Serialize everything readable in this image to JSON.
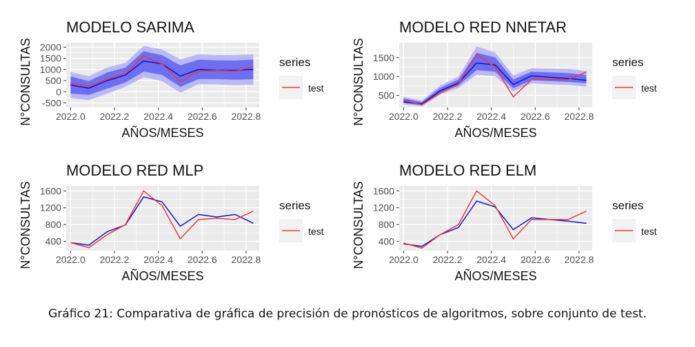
{
  "caption": "Gráfico 21: Comparativa de gráfica de precisión de pronósticos de algoritmos, sobre conjunto de test.",
  "colors": {
    "panel": "#ebebeb",
    "grid": "#ffffff",
    "test": "#e8393c",
    "forecast": "#1010c8",
    "band80": "#6e6ef0",
    "band95": "#b9b9f5"
  },
  "chart_data": [
    {
      "type": "line",
      "title": "MODELO SARIMA",
      "xlabel": "AÑOS/MESES",
      "ylabel": "N°CONSULTAS",
      "legend_title": "series",
      "legend_position": "right",
      "grid": true,
      "xlim": [
        2021.98,
        2022.86
      ],
      "ylim": [
        -700,
        2200
      ],
      "xticks": [
        2022.0,
        2022.2,
        2022.4,
        2022.6,
        2022.8
      ],
      "yticks": [
        -500,
        0,
        500,
        1000,
        1500,
        2000
      ],
      "x": [
        2022.0,
        2022.083,
        2022.167,
        2022.25,
        2022.333,
        2022.417,
        2022.5,
        2022.583,
        2022.667,
        2022.75,
        2022.833
      ],
      "series": [
        {
          "name": "test",
          "values": [
            380,
            250,
            560,
            800,
            1600,
            1250,
            460,
            920,
            950,
            920,
            1130
          ]
        },
        {
          "values": [
            300,
            160,
            500,
            750,
            1380,
            1250,
            700,
            1000,
            960,
            960,
            1000
          ]
        }
      ],
      "bands": [
        {
          "level": 95,
          "lower": [
            -280,
            -380,
            -80,
            220,
            650,
            480,
            -40,
            340,
            330,
            300,
            320
          ],
          "upper": [
            880,
            700,
            1080,
            1300,
            2050,
            1900,
            1450,
            1680,
            1650,
            1650,
            1680
          ]
        },
        {
          "level": 80,
          "lower": [
            -80,
            -140,
            140,
            420,
            900,
            760,
            220,
            570,
            570,
            540,
            560
          ],
          "upper": [
            680,
            480,
            860,
            1080,
            1820,
            1640,
            1180,
            1440,
            1410,
            1400,
            1440
          ]
        }
      ]
    },
    {
      "type": "line",
      "title": "MODELO RED NNETAR",
      "xlabel": "AÑOS/MESES",
      "ylabel": "N°CONSULTAS",
      "legend_title": "series",
      "legend_position": "right",
      "grid": true,
      "xlim": [
        2021.98,
        2022.86
      ],
      "ylim": [
        180,
        1900
      ],
      "xticks": [
        2022.0,
        2022.2,
        2022.4,
        2022.6,
        2022.8
      ],
      "yticks": [
        500,
        1000,
        1500
      ],
      "x": [
        2022.0,
        2022.083,
        2022.167,
        2022.25,
        2022.333,
        2022.417,
        2022.5,
        2022.583,
        2022.667,
        2022.75,
        2022.833
      ],
      "series": [
        {
          "name": "test",
          "values": [
            370,
            250,
            560,
            800,
            1600,
            1250,
            460,
            920,
            920,
            920,
            1120
          ]
        },
        {
          "values": [
            330,
            270,
            620,
            830,
            1360,
            1310,
            790,
            1020,
            980,
            950,
            900
          ]
        }
      ],
      "bands": [
        {
          "level": 95,
          "lower": [
            260,
            210,
            520,
            700,
            1050,
            1010,
            600,
            820,
            790,
            780,
            730
          ],
          "upper": [
            460,
            360,
            760,
            1000,
            1800,
            1640,
            1030,
            1220,
            1210,
            1200,
            1150
          ]
        },
        {
          "level": 80,
          "lower": [
            300,
            240,
            570,
            760,
            1170,
            1130,
            690,
            900,
            880,
            860,
            820
          ],
          "upper": [
            420,
            320,
            700,
            920,
            1630,
            1510,
            920,
            1130,
            1110,
            1090,
            1040
          ]
        }
      ]
    },
    {
      "type": "line",
      "title": "MODELO RED MLP",
      "xlabel": "AÑOS/MESES",
      "ylabel": "N°CONSULTAS",
      "legend_title": "series",
      "legend_position": "right",
      "grid": true,
      "xlim": [
        2021.98,
        2022.86
      ],
      "ylim": [
        180,
        1720
      ],
      "xticks": [
        2022.0,
        2022.2,
        2022.4,
        2022.6,
        2022.8
      ],
      "yticks": [
        400,
        800,
        1200,
        1600
      ],
      "x": [
        2022.0,
        2022.083,
        2022.167,
        2022.25,
        2022.333,
        2022.417,
        2022.5,
        2022.583,
        2022.667,
        2022.75,
        2022.833
      ],
      "series": [
        {
          "name": "test",
          "values": [
            370,
            250,
            560,
            800,
            1600,
            1250,
            460,
            920,
            950,
            920,
            1120
          ]
        },
        {
          "values": [
            370,
            310,
            630,
            790,
            1460,
            1340,
            760,
            1040,
            980,
            1040,
            830
          ]
        }
      ]
    },
    {
      "type": "line",
      "title": "MODELO RED ELM",
      "xlabel": "AÑOS/MESES",
      "ylabel": "N°CONSULTAS",
      "legend_title": "series",
      "legend_position": "right",
      "grid": true,
      "xlim": [
        2021.98,
        2022.86
      ],
      "ylim": [
        180,
        1720
      ],
      "xticks": [
        2022.0,
        2022.2,
        2022.4,
        2022.6,
        2022.8
      ],
      "yticks": [
        400,
        800,
        1200,
        1600
      ],
      "x": [
        2022.0,
        2022.083,
        2022.167,
        2022.25,
        2022.333,
        2022.417,
        2022.5,
        2022.583,
        2022.667,
        2022.75,
        2022.833
      ],
      "series": [
        {
          "name": "test",
          "values": [
            360,
            240,
            560,
            800,
            1600,
            1250,
            460,
            920,
            920,
            920,
            1120
          ]
        },
        {
          "values": [
            340,
            280,
            560,
            730,
            1360,
            1220,
            680,
            960,
            920,
            880,
            830
          ]
        }
      ]
    }
  ]
}
